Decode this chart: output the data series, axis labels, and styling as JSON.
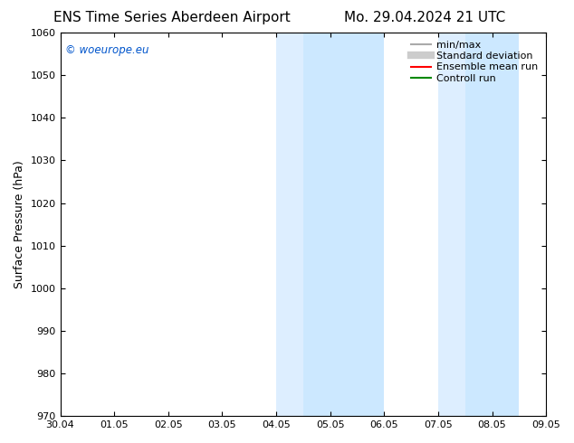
{
  "title_left": "ENS Time Series Aberdeen Airport",
  "title_right": "Mo. 29.04.2024 21 UTC",
  "ylabel": "Surface Pressure (hPa)",
  "ylim": [
    970,
    1060
  ],
  "yticks": [
    970,
    980,
    990,
    1000,
    1010,
    1020,
    1030,
    1040,
    1050,
    1060
  ],
  "xtick_labels": [
    "30.04",
    "01.05",
    "02.05",
    "03.05",
    "04.05",
    "05.05",
    "06.05",
    "07.05",
    "08.05",
    "09.05"
  ],
  "xtick_positions": [
    0,
    1,
    2,
    3,
    4,
    5,
    6,
    7,
    8,
    9
  ],
  "shaded_bands": [
    {
      "x_start": 4.0,
      "x_end": 4.5,
      "color": "#ddeeff"
    },
    {
      "x_start": 4.5,
      "x_end": 6.0,
      "color": "#cce8ff"
    },
    {
      "x_start": 7.0,
      "x_end": 7.5,
      "color": "#ddeeff"
    },
    {
      "x_start": 7.5,
      "x_end": 8.5,
      "color": "#cce8ff"
    }
  ],
  "watermark_text": "© woeurope.eu",
  "watermark_color": "#0055cc",
  "legend_items": [
    {
      "label": "min/max",
      "color": "#aaaaaa",
      "lw": 1.5
    },
    {
      "label": "Standard deviation",
      "color": "#cccccc",
      "lw": 6
    },
    {
      "label": "Ensemble mean run",
      "color": "#ff0000",
      "lw": 1.5
    },
    {
      "label": "Controll run",
      "color": "#008800",
      "lw": 1.5
    }
  ],
  "bg_color": "#ffffff",
  "title_fontsize": 11,
  "tick_fontsize": 8,
  "ylabel_fontsize": 9,
  "legend_fontsize": 8
}
